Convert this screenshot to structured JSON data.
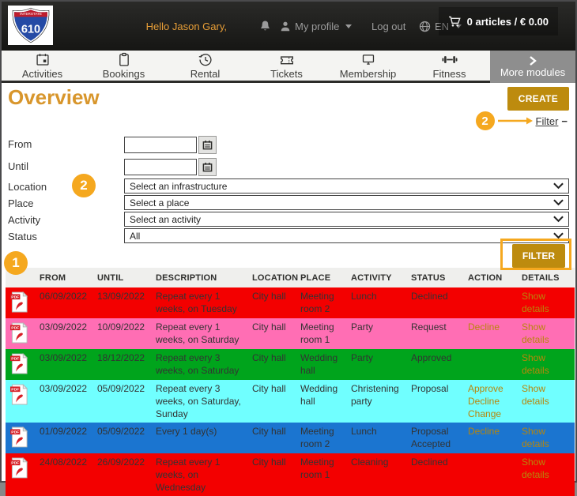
{
  "header": {
    "logo": {
      "band": "INTERSTATE",
      "number": "610"
    },
    "greeting": "Hello Jason Gary,",
    "my_profile": "My profile",
    "logout": "Log out",
    "language": "EN",
    "cart": "0 articles / € 0.00"
  },
  "nav": {
    "items": [
      {
        "label": "Activities"
      },
      {
        "label": "Bookings"
      },
      {
        "label": "Rental"
      },
      {
        "label": "Tickets"
      },
      {
        "label": "Membership"
      },
      {
        "label": "Fitness"
      }
    ],
    "more_label": "More modules"
  },
  "page": {
    "title": "Overview",
    "create_button": "CREATE",
    "filter_toggle": "Filter",
    "collapse_glyph": "−"
  },
  "annotations": {
    "one": "1",
    "two": "2",
    "accent": "#f5a81f"
  },
  "filter_form": {
    "from_label": "From",
    "from_value": "",
    "until_label": "Until",
    "until_value": "",
    "location_label": "Location",
    "location_value": "Select an infrastructure",
    "place_label": "Place",
    "place_value": "Select a place",
    "activity_label": "Activity",
    "activity_value": "Select an activity",
    "status_label": "Status",
    "status_value": "All",
    "filter_button": "FILTER"
  },
  "table": {
    "columns": [
      "FROM",
      "UNTIL",
      "DESCRIPTION",
      "LOCATION",
      "PLACE",
      "ACTIVITY",
      "STATUS",
      "ACTION",
      "DETAILS"
    ],
    "details_label": "Show details",
    "rows": [
      {
        "from": "06/09/2022",
        "until": "13/09/2022",
        "description": "Repeat every 1 weeks, on Tuesday",
        "location": "City hall",
        "place": "Meeting room 2",
        "activity": "Lunch",
        "status": "Declined",
        "actions": [],
        "details": "Show details",
        "row_color": "#f30000"
      },
      {
        "from": "03/09/2022",
        "until": "10/09/2022",
        "description": "Repeat every 1 weeks, on Saturday",
        "location": "City hall",
        "place": "Meeting room 1",
        "activity": "Party",
        "status": "Request",
        "actions": [
          "Decline"
        ],
        "details": "Show details",
        "row_color": "#ff6eb4"
      },
      {
        "from": "03/09/2022",
        "until": "18/12/2022",
        "description": "Repeat every 3 weeks, on Saturday",
        "location": "City hall",
        "place": "Wedding hall",
        "activity": "Party",
        "status": "Approved",
        "actions": [],
        "details": "Show details",
        "row_color": "#00a41c"
      },
      {
        "from": "03/09/2022",
        "until": "05/09/2022",
        "description": "Repeat every 3 weeks, on Saturday, Sunday",
        "location": "City hall",
        "place": "Wedding hall",
        "activity": "Christening party",
        "status": "Proposal",
        "actions": [
          "Approve",
          "Decline",
          "Change"
        ],
        "details": "Show details",
        "row_color": "#70ffff"
      },
      {
        "from": "01/09/2022",
        "until": "05/09/2022",
        "description": "Every 1 day(s)",
        "location": "City hall",
        "place": "Meeting room 2",
        "activity": "Lunch",
        "status": "Proposal Accepted",
        "actions": [
          "Decline"
        ],
        "details": "Show details",
        "row_color": "#1b75d0"
      },
      {
        "from": "24/08/2022",
        "until": "26/09/2022",
        "description": "Repeat every 1 weeks, on Wednesday",
        "location": "City hall",
        "place": "Meeting room 1",
        "activity": "Cleaning",
        "status": "Declined",
        "actions": [],
        "details": "Show details",
        "row_color": "#f30000"
      }
    ]
  }
}
